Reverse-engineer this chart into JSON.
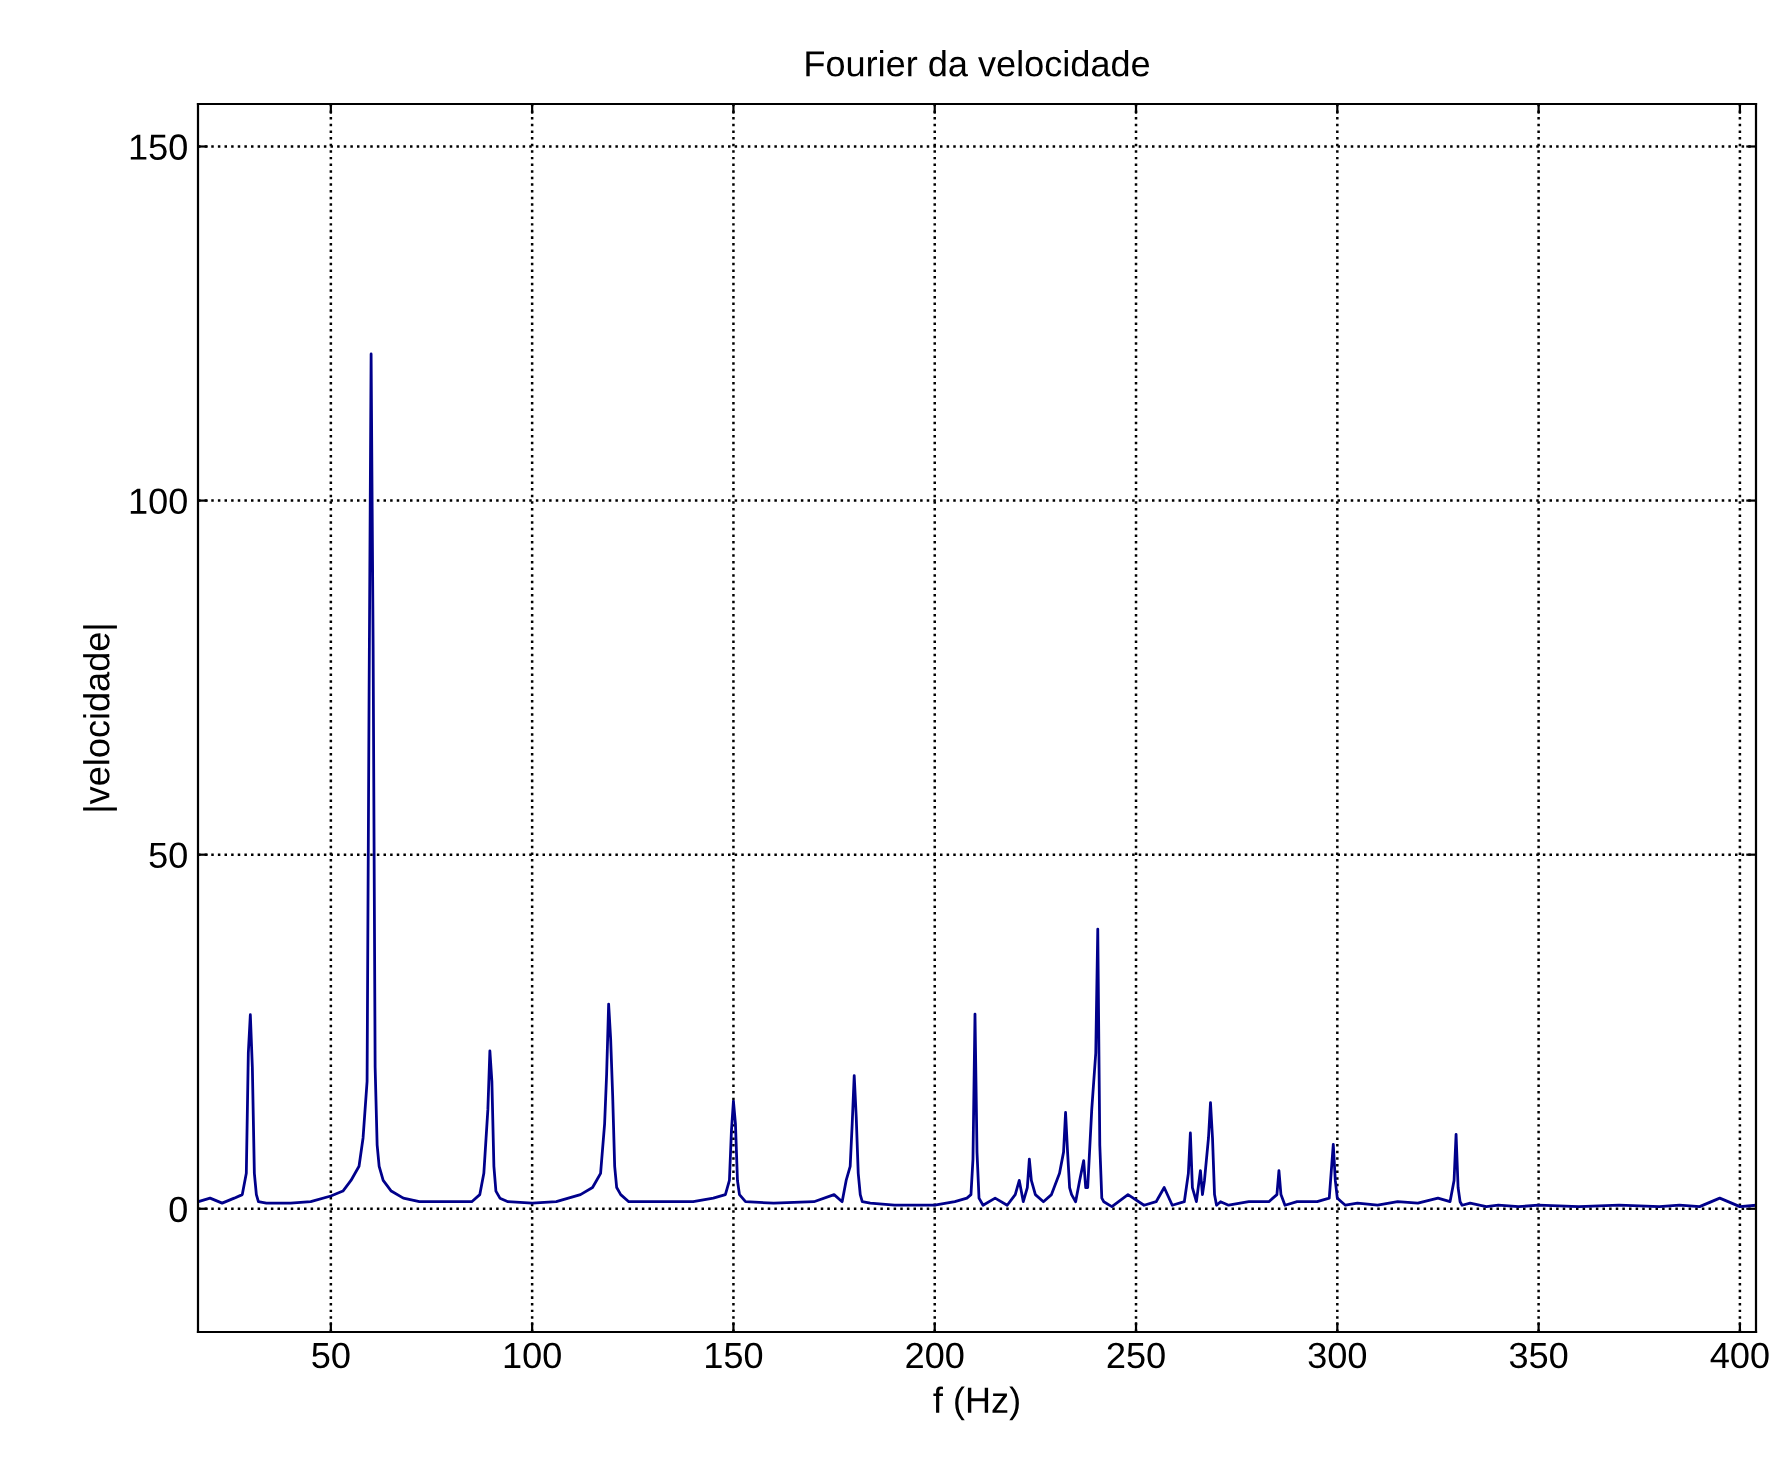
{
  "chart_data": {
    "type": "line",
    "title": "Fourier da velocidade",
    "xlabel": "f (Hz)",
    "ylabel": "|velocidade|",
    "xlim": [
      17,
      404
    ],
    "ylim": [
      -17.4,
      156
    ],
    "xticks": [
      50,
      100,
      150,
      200,
      250,
      300,
      350,
      400
    ],
    "yticks": [
      0,
      50,
      100,
      150
    ],
    "grid": true,
    "line_style": "solid",
    "marker": "none",
    "series": [
      {
        "color": "#00008b",
        "x": [
          17,
          20,
          23,
          26,
          28,
          29,
          29.5,
          30,
          30.5,
          31,
          31.5,
          32,
          34,
          40,
          45,
          50,
          53,
          55,
          57,
          58,
          59,
          59.5,
          60,
          60.5,
          61,
          61.5,
          62,
          63,
          65,
          68,
          72,
          78,
          85,
          87,
          88,
          89,
          89.5,
          90,
          90.5,
          91,
          92,
          94,
          100,
          106,
          112,
          115,
          116,
          117,
          118,
          118.5,
          119,
          119.5,
          120,
          120.5,
          121,
          122,
          124,
          130,
          140,
          145,
          148,
          149,
          149.5,
          150,
          150.5,
          151,
          151.5,
          153,
          160,
          170,
          175,
          177,
          178,
          179,
          179.5,
          180,
          180.5,
          181,
          181.5,
          182,
          184,
          190,
          200,
          205,
          208,
          209,
          209.5,
          210,
          210.5,
          211,
          212,
          215,
          218,
          220,
          221,
          222,
          223,
          223.5,
          224,
          225,
          227,
          229,
          231,
          232,
          232.5,
          233,
          233.5,
          234,
          235,
          236,
          237,
          237.5,
          238,
          239,
          240,
          240.5,
          241,
          241.5,
          242,
          244,
          248,
          252,
          255,
          257,
          259,
          262,
          263,
          263.5,
          264,
          265,
          266,
          266.5,
          267,
          268,
          268.5,
          269,
          269.5,
          270,
          271,
          273,
          278,
          283,
          285,
          285.5,
          286,
          287,
          290,
          295,
          298,
          299,
          299.5,
          300,
          301,
          302,
          305,
          310,
          315,
          320,
          325,
          328,
          329,
          329.5,
          330,
          330.5,
          331,
          333,
          337,
          340,
          345,
          350,
          360,
          370,
          380,
          385,
          390,
          395,
          400,
          404
        ],
        "values": [
          1,
          1.5,
          0.8,
          1.5,
          2,
          5,
          22,
          27.4,
          20,
          5,
          2,
          1,
          0.8,
          0.8,
          1,
          1.8,
          2.5,
          4,
          6,
          10,
          18,
          73,
          120.7,
          79.4,
          20,
          9,
          6,
          4,
          2.5,
          1.5,
          1,
          1,
          1,
          2,
          5,
          14,
          22.3,
          18,
          6,
          2.5,
          1.5,
          1,
          0.8,
          1,
          2,
          3,
          4,
          5,
          12,
          19,
          28.9,
          24,
          16,
          6,
          3,
          2,
          1,
          1,
          1,
          1.5,
          2,
          4,
          11,
          15.2,
          12,
          4,
          2,
          1,
          0.8,
          1,
          2,
          1,
          4,
          6,
          12,
          18.8,
          13,
          5,
          2,
          1,
          0.8,
          0.5,
          0.5,
          1,
          1.5,
          2,
          7,
          27.5,
          8,
          1.5,
          0.5,
          1.5,
          0.5,
          2,
          4,
          1,
          3,
          7,
          4,
          2,
          1,
          2,
          5,
          8,
          13.6,
          8,
          3,
          2,
          1,
          4,
          6.8,
          3,
          3,
          14,
          22,
          39.5,
          9,
          1.5,
          1,
          0.3,
          2,
          0.5,
          1,
          3,
          0.5,
          1,
          5,
          10.7,
          3,
          1,
          5.4,
          2,
          4,
          10,
          15,
          10,
          2,
          0.5,
          1,
          0.5,
          1,
          1,
          2,
          5.4,
          2,
          0.5,
          1,
          1,
          1.5,
          9.1,
          4,
          1.5,
          1,
          0.5,
          0.8,
          0.5,
          1,
          0.8,
          1.5,
          1,
          4,
          10.5,
          3,
          1,
          0.5,
          0.8,
          0.3,
          0.5,
          0.3,
          0.5,
          0.3,
          0.5,
          0.3,
          0.5,
          0.3,
          1.5,
          0.3,
          0.5
        ]
      }
    ]
  }
}
